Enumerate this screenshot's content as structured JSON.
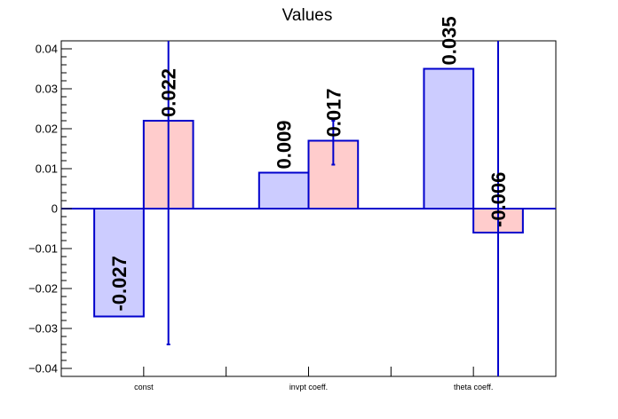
{
  "chart_data": {
    "type": "bar",
    "title": "Values",
    "xlabel": "",
    "ylabel": "",
    "categories": [
      "const",
      "invpt coeff.",
      "theta coeff."
    ],
    "series": [
      {
        "values": [
          -0.027,
          0.009,
          0.035
        ],
        "value_labels": [
          "-0.027",
          "0.009",
          "0.035"
        ],
        "errors": [
          null,
          null,
          null
        ],
        "fill": "#ccccff",
        "stroke": "#0000cc"
      },
      {
        "values": [
          0.022,
          0.017,
          -0.006
        ],
        "value_labels": [
          "0.022",
          "0.017",
          "-0.006"
        ],
        "errors": [
          [
            -0.034,
            0.042
          ],
          [
            0.011,
            0.022
          ],
          [
            -0.042,
            0.042
          ]
        ],
        "fill": "#ffcccc",
        "stroke": "#0000cc"
      }
    ],
    "ylim": [
      -0.042,
      0.042
    ],
    "yticks": [
      -0.04,
      -0.03,
      -0.02,
      -0.01,
      0,
      0.01,
      0.02,
      0.03,
      0.04
    ],
    "ytick_labels": [
      "−0.04",
      "−0.03",
      "−0.02",
      "−0.01",
      "0",
      "0.01",
      "0.02",
      "0.03",
      "0.04"
    ],
    "grid": false,
    "legend": "none",
    "colors": {
      "zero_line": "#0000cc",
      "axis": "#000000"
    }
  }
}
